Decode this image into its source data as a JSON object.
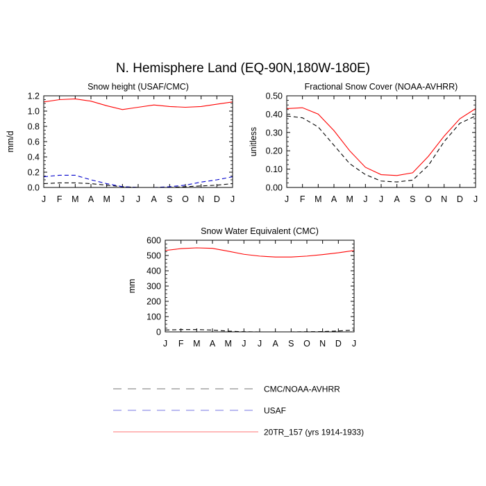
{
  "title": "N. Hemisphere Land (EQ-90N,180W-180E)",
  "legend": {
    "placement": "bottom-center",
    "entries": [
      {
        "label": "CMC/NOAA-AVHRR",
        "color": "#000000",
        "dash": "dashed"
      },
      {
        "label": "USAF",
        "color": "#0000cc",
        "dash": "dashed"
      },
      {
        "label": "20TR_157 (yrs 1914-1933)",
        "color": "#ff0000",
        "dash": "solid"
      }
    ]
  },
  "chart_data": [
    {
      "type": "line",
      "title": "Snow height (USAF/CMC)",
      "ylabel": "mm/d",
      "xlabel": "",
      "categories": [
        "J",
        "F",
        "M",
        "A",
        "M",
        "J",
        "J",
        "A",
        "S",
        "O",
        "N",
        "D",
        "J"
      ],
      "ylim": [
        0,
        1.2
      ],
      "yticks": [
        "0.0",
        "0.2",
        "0.4",
        "0.6",
        "0.8",
        "1.0",
        "1.2"
      ],
      "series": [
        {
          "name": "CMC/NOAA-AVHRR",
          "color": "#000000",
          "dash": "dashed",
          "values": [
            0.05,
            0.06,
            0.06,
            0.05,
            0.03,
            0.01,
            0.0,
            0.0,
            0.0,
            0.01,
            0.02,
            0.03,
            0.05
          ]
        },
        {
          "name": "USAF",
          "color": "#0000cc",
          "dash": "dashed",
          "values": [
            0.14,
            0.16,
            0.16,
            0.1,
            0.05,
            0.01,
            0.0,
            0.0,
            0.01,
            0.03,
            0.07,
            0.1,
            0.14
          ]
        },
        {
          "name": "20TR_157 (yrs 1914-1933)",
          "color": "#ff0000",
          "dash": "solid",
          "values": [
            1.12,
            1.15,
            1.16,
            1.13,
            1.07,
            1.02,
            1.05,
            1.08,
            1.06,
            1.05,
            1.06,
            1.09,
            1.12
          ]
        }
      ]
    },
    {
      "type": "line",
      "title": "Fractional Snow Cover (NOAA-AVHRR)",
      "ylabel": "unitless",
      "xlabel": "",
      "categories": [
        "J",
        "F",
        "M",
        "A",
        "M",
        "J",
        "J",
        "A",
        "S",
        "O",
        "N",
        "D",
        "J"
      ],
      "ylim": [
        0,
        0.5
      ],
      "yticks": [
        "0.00",
        "0.10",
        "0.20",
        "0.30",
        "0.40",
        "0.50"
      ],
      "series": [
        {
          "name": "CMC/NOAA-AVHRR",
          "color": "#000000",
          "dash": "dashed",
          "values": [
            0.39,
            0.38,
            0.33,
            0.23,
            0.13,
            0.07,
            0.035,
            0.03,
            0.04,
            0.12,
            0.25,
            0.35,
            0.39
          ]
        },
        {
          "name": "20TR_157 (yrs 1914-1933)",
          "color": "#ff0000",
          "dash": "solid",
          "values": [
            0.43,
            0.435,
            0.4,
            0.31,
            0.2,
            0.11,
            0.07,
            0.065,
            0.08,
            0.17,
            0.28,
            0.375,
            0.43
          ]
        }
      ]
    },
    {
      "type": "line",
      "title": "Snow Water Equivalent (CMC)",
      "ylabel": "mm",
      "xlabel": "",
      "categories": [
        "J",
        "F",
        "M",
        "A",
        "M",
        "J",
        "J",
        "A",
        "S",
        "O",
        "N",
        "D",
        "J"
      ],
      "ylim": [
        0,
        600
      ],
      "yticks": [
        "0",
        "100",
        "200",
        "300",
        "400",
        "500",
        "600"
      ],
      "series": [
        {
          "name": "CMC/NOAA-AVHRR",
          "color": "#000000",
          "dash": "dashed",
          "values": [
            12,
            15,
            15,
            12,
            5,
            1,
            0,
            0,
            0,
            1,
            2,
            6,
            12
          ]
        },
        {
          "name": "20TR_157 (yrs 1914-1933)",
          "color": "#ff0000",
          "dash": "solid",
          "values": [
            533,
            545,
            550,
            547,
            528,
            508,
            496,
            490,
            490,
            496,
            506,
            518,
            533
          ]
        }
      ]
    }
  ]
}
